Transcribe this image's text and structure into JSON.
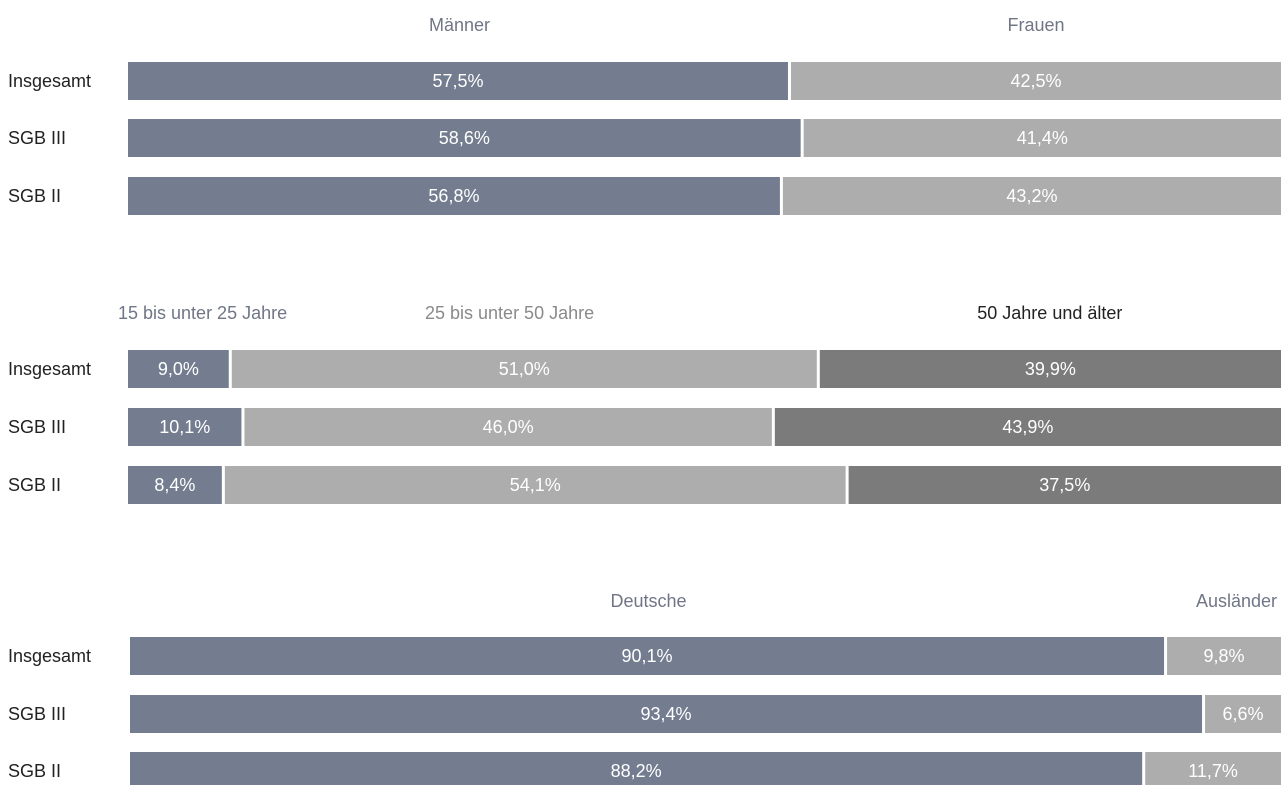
{
  "chart_data": [
    {
      "type": "bar",
      "orientation": "horizontal",
      "stacked": true,
      "categories": [
        "Insgesamt",
        "SGB III",
        "SGB II"
      ],
      "series": [
        {
          "name": "Männer",
          "values": [
            57.5,
            58.6,
            56.8
          ],
          "labels": [
            "57,5%",
            "58,6%",
            "56,8%"
          ],
          "color": "#737d8f",
          "header_color": "#6f7686"
        },
        {
          "name": "Frauen",
          "values": [
            42.5,
            41.4,
            43.2
          ],
          "labels": [
            "42,5%",
            "41,4%",
            "43,2%"
          ],
          "color": "#adadad",
          "header_color": "#6f7686"
        }
      ],
      "xlim": [
        0,
        100
      ]
    },
    {
      "type": "bar",
      "orientation": "horizontal",
      "stacked": true,
      "categories": [
        "Insgesamt",
        "SGB III",
        "SGB II"
      ],
      "series": [
        {
          "name": "15 bis unter 25 Jahre",
          "values": [
            9.0,
            10.1,
            8.4
          ],
          "labels": [
            "9,0%",
            "10,1%",
            "8,4%"
          ],
          "color": "#737d8f",
          "header_color": "#6f7686"
        },
        {
          "name": "25 bis unter 50 Jahre",
          "values": [
            51.0,
            46.0,
            54.1
          ],
          "labels": [
            "51,0%",
            "46,0%",
            "54,1%"
          ],
          "color": "#adadad",
          "header_color": "#8a8a8a"
        },
        {
          "name": "50 Jahre und älter",
          "values": [
            39.9,
            43.9,
            37.5
          ],
          "labels": [
            "39,9%",
            "43,9%",
            "37,5%"
          ],
          "color": "#7b7b7b",
          "header_color": "#222222"
        }
      ],
      "xlim": [
        0,
        100
      ]
    },
    {
      "type": "bar",
      "orientation": "horizontal",
      "stacked": true,
      "categories": [
        "Insgesamt",
        "SGB III",
        "SGB II"
      ],
      "series": [
        {
          "name": "Deutsche",
          "values": [
            90.1,
            93.4,
            88.2
          ],
          "labels": [
            "90,1%",
            "93,4%",
            "88,2%"
          ],
          "color": "#737d8f",
          "header_color": "#6f7686"
        },
        {
          "name": "Ausländer",
          "values": [
            9.8,
            6.6,
            11.7
          ],
          "labels": [
            "9,8%",
            "6,6%",
            "11,7%"
          ],
          "color": "#adadad",
          "header_color": "#6f7686"
        }
      ],
      "xlim": [
        0,
        100
      ]
    }
  ]
}
